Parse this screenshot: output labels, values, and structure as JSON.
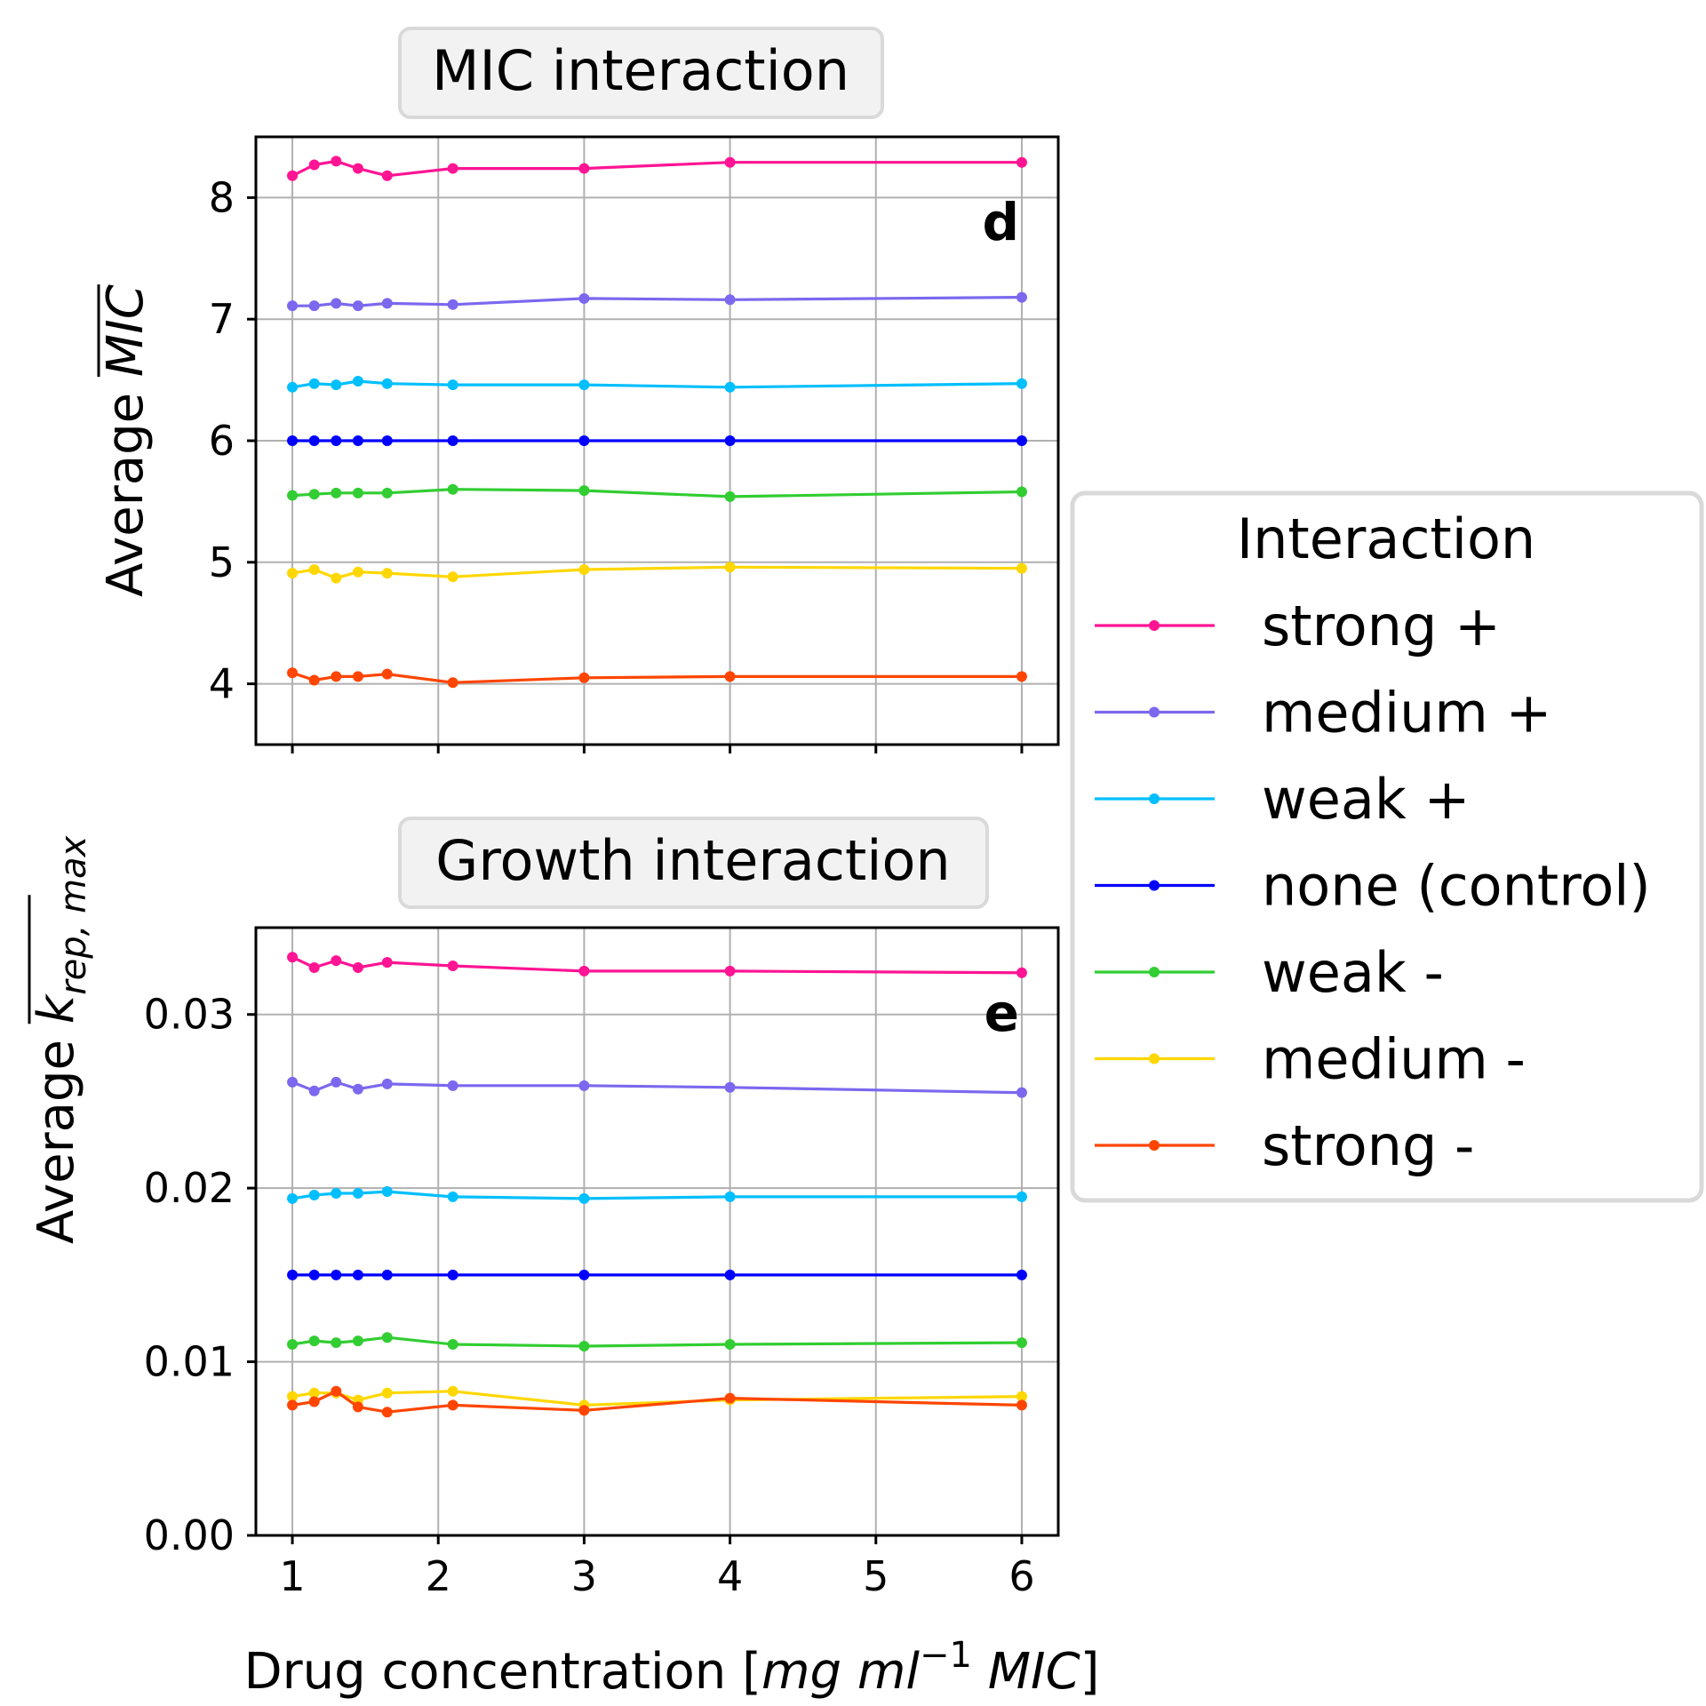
{
  "chart_data": [
    {
      "type": "line",
      "panel_label": "d",
      "title": "MIC interaction",
      "ylabel_prefix": "Average",
      "ylabel_symbol": "MIC",
      "xlabel": "",
      "x": [
        1.0,
        1.15,
        1.3,
        1.45,
        1.65,
        2.1,
        3.0,
        4.0,
        6.0
      ],
      "xlim": [
        0.75,
        6.25
      ],
      "ylim": [
        3.5,
        8.5
      ],
      "xticks": [
        1,
        2,
        3,
        4,
        5,
        6
      ],
      "xtick_labels": [],
      "yticks": [
        4,
        5,
        6,
        7,
        8
      ],
      "ytick_labels": [
        "4",
        "5",
        "6",
        "7",
        "8"
      ],
      "grid": true,
      "series": [
        {
          "name": "strong +",
          "color": "#FF1493",
          "values": [
            8.18,
            8.27,
            8.3,
            8.24,
            8.18,
            8.24,
            8.24,
            8.29,
            8.29
          ]
        },
        {
          "name": "medium +",
          "color": "#7B68EE",
          "values": [
            7.11,
            7.11,
            7.13,
            7.11,
            7.13,
            7.12,
            7.17,
            7.16,
            7.18
          ]
        },
        {
          "name": "weak +",
          "color": "#00BFFF",
          "values": [
            6.44,
            6.47,
            6.46,
            6.49,
            6.47,
            6.46,
            6.46,
            6.44,
            6.47
          ]
        },
        {
          "name": "none (control)",
          "color": "#0000FF",
          "values": [
            6.0,
            6.0,
            6.0,
            6.0,
            6.0,
            6.0,
            6.0,
            6.0,
            6.0
          ]
        },
        {
          "name": "weak -",
          "color": "#32CD32",
          "values": [
            5.55,
            5.56,
            5.57,
            5.57,
            5.57,
            5.6,
            5.59,
            5.54,
            5.58
          ]
        },
        {
          "name": "medium -",
          "color": "#FFD700",
          "values": [
            4.91,
            4.94,
            4.87,
            4.92,
            4.91,
            4.88,
            4.94,
            4.96,
            4.95
          ]
        },
        {
          "name": "strong -",
          "color": "#FF4500",
          "values": [
            4.09,
            4.03,
            4.06,
            4.06,
            4.08,
            4.01,
            4.05,
            4.06,
            4.06
          ]
        }
      ]
    },
    {
      "type": "line",
      "panel_label": "e",
      "title": "Growth interaction",
      "ylabel_prefix": "Average",
      "ylabel_symbol": "k",
      "ylabel_subscript": "rep, max",
      "xlabel_prefix": "Drug concentration [",
      "xlabel_italic": "mg ml",
      "xlabel_sup": "−1",
      "xlabel_italic2": " MIC",
      "xlabel_suffix": "]",
      "x": [
        1.0,
        1.15,
        1.3,
        1.45,
        1.65,
        2.1,
        3.0,
        4.0,
        6.0
      ],
      "xlim": [
        0.75,
        6.25
      ],
      "ylim": [
        0.0,
        0.035
      ],
      "xticks": [
        1,
        2,
        3,
        4,
        5,
        6
      ],
      "xtick_labels": [
        "1",
        "2",
        "3",
        "4",
        "5",
        "6"
      ],
      "yticks": [
        0.0,
        0.01,
        0.02,
        0.03
      ],
      "ytick_labels": [
        "0.00",
        "0.01",
        "0.02",
        "0.03"
      ],
      "grid": true,
      "series": [
        {
          "name": "strong +",
          "color": "#FF1493",
          "values": [
            0.0333,
            0.0327,
            0.0331,
            0.0327,
            0.033,
            0.0328,
            0.0325,
            0.0325,
            0.0324
          ]
        },
        {
          "name": "medium +",
          "color": "#7B68EE",
          "values": [
            0.0261,
            0.0256,
            0.0261,
            0.0257,
            0.026,
            0.0259,
            0.0259,
            0.0258,
            0.0255
          ]
        },
        {
          "name": "weak +",
          "color": "#00BFFF",
          "values": [
            0.0194,
            0.0196,
            0.0197,
            0.0197,
            0.0198,
            0.0195,
            0.0194,
            0.0195,
            0.0195
          ]
        },
        {
          "name": "none (control)",
          "color": "#0000FF",
          "values": [
            0.015,
            0.015,
            0.015,
            0.015,
            0.015,
            0.015,
            0.015,
            0.015,
            0.015
          ]
        },
        {
          "name": "weak -",
          "color": "#32CD32",
          "values": [
            0.011,
            0.0112,
            0.0111,
            0.0112,
            0.0114,
            0.011,
            0.0109,
            0.011,
            0.0111
          ]
        },
        {
          "name": "medium -",
          "color": "#FFD700",
          "values": [
            0.008,
            0.0082,
            0.0082,
            0.0078,
            0.0082,
            0.0083,
            0.0075,
            0.0078,
            0.008
          ]
        },
        {
          "name": "strong -",
          "color": "#FF4500",
          "values": [
            0.0075,
            0.0077,
            0.0083,
            0.0074,
            0.0071,
            0.0075,
            0.0072,
            0.0079,
            0.0075
          ]
        }
      ]
    }
  ],
  "legend": {
    "title": "Interaction",
    "placement": "right",
    "items": [
      "strong +",
      "medium +",
      "weak +",
      "none (control)",
      "weak -",
      "medium -",
      "strong -"
    ]
  }
}
